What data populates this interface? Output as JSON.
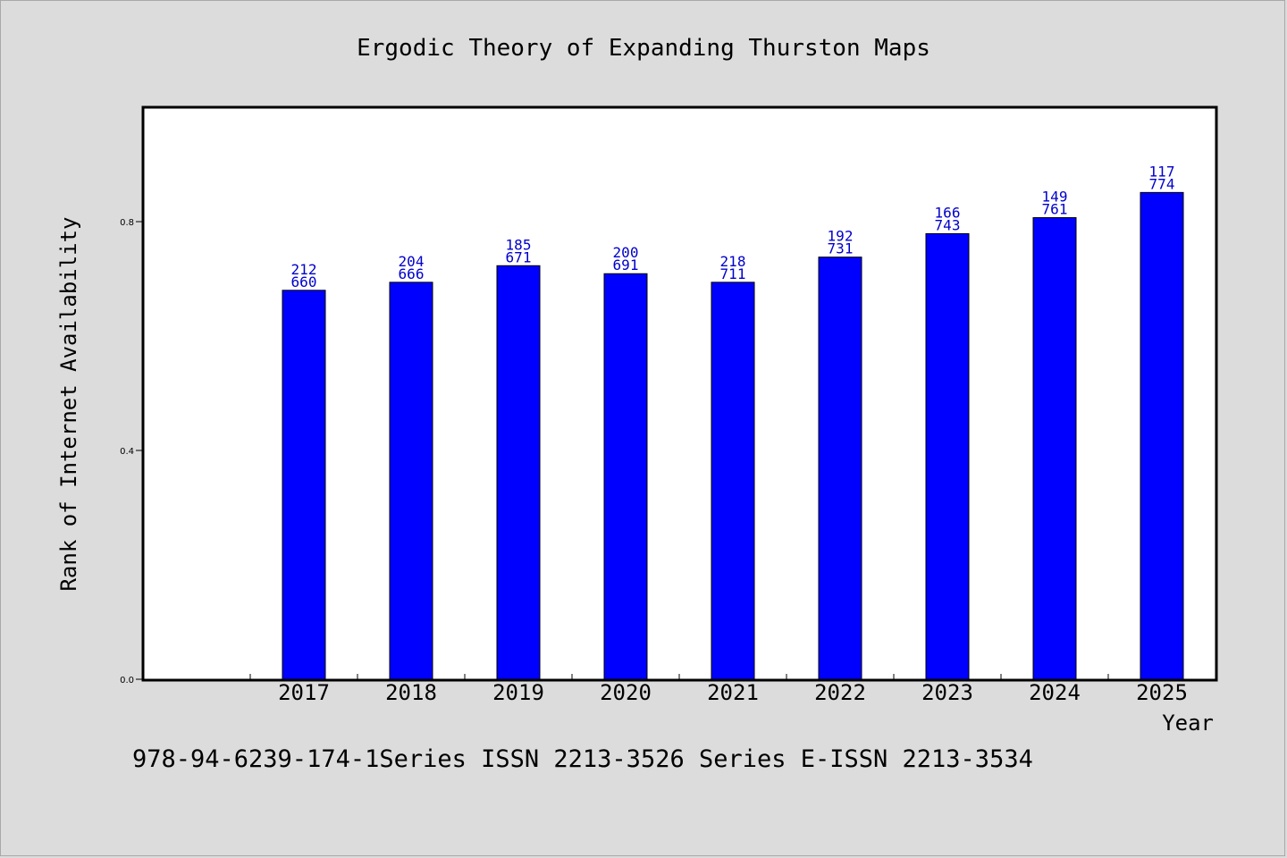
{
  "chart_data": {
    "type": "bar",
    "title": "Ergodic Theory of Expanding Thurston Maps",
    "xlabel": "Year",
    "ylabel": "Rank of Internet Availability",
    "categories": [
      "2017",
      "2018",
      "2019",
      "2020",
      "2021",
      "2022",
      "2023",
      "2024",
      "2025"
    ],
    "values": [
      0.68,
      0.694,
      0.723,
      0.709,
      0.694,
      0.738,
      0.779,
      0.807,
      0.851
    ],
    "data_labels_top": [
      "212",
      "204",
      "185",
      "200",
      "218",
      "192",
      "166",
      "149",
      "117"
    ],
    "data_labels_bottom": [
      "660",
      "666",
      "671",
      "691",
      "711",
      "731",
      "743",
      "761",
      "774"
    ],
    "ylim": [
      0,
      1.0
    ],
    "yticks": [
      0.0,
      0.4,
      0.8
    ],
    "ytick_labels": [
      "0.0",
      "0.4",
      "0.8"
    ],
    "grid": false,
    "bar_color": "#0000ff",
    "label_color": "#0000cc"
  },
  "footer": {
    "text": "978-94-6239-174-1Series ISSN 2213-3526 Series E-ISSN 2213-3534"
  }
}
